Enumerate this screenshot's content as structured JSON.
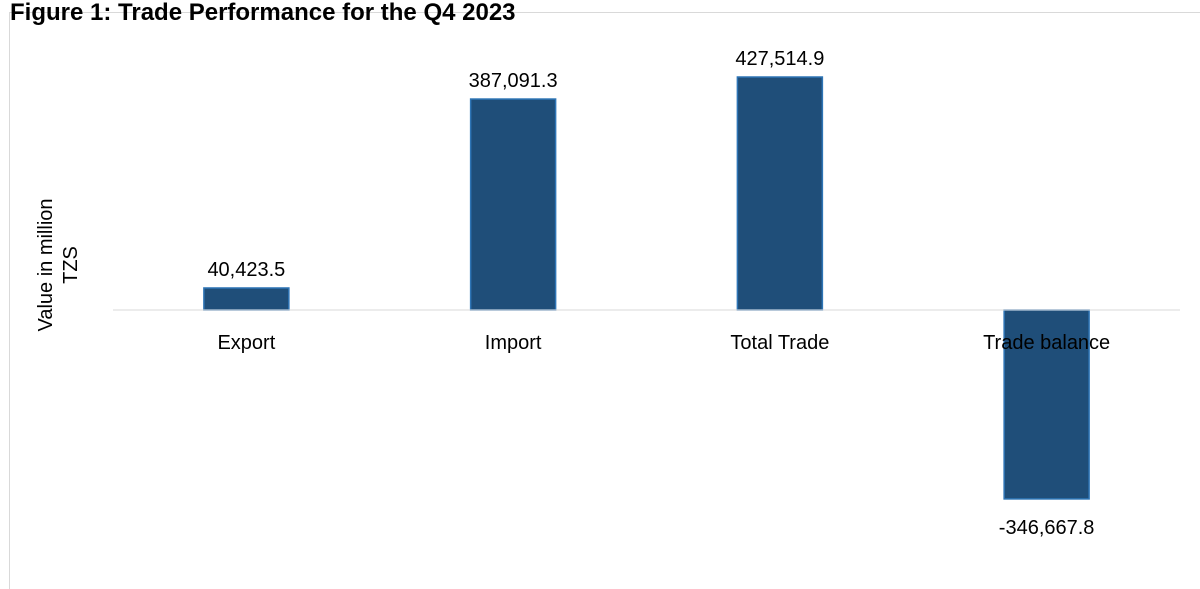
{
  "chart_data": {
    "type": "bar",
    "title": "Figure 1: Trade Performance for the Q4 2023",
    "ylabel": "Value in million TZS",
    "ylabel_lines": [
      "Value in million",
      "TZS"
    ],
    "xlabel": "",
    "categories": [
      "Export",
      "Import",
      "Total Trade",
      "Trade balance"
    ],
    "values": [
      40423.5,
      387091.3,
      427514.9,
      -346667.8
    ],
    "data_labels": [
      "40,423.5",
      "387,091.3",
      "427,514.9",
      "-346,667.8"
    ],
    "ylim": [
      -400000,
      500000
    ],
    "grid": false,
    "legend": "none",
    "bar_color": "#1f4e79",
    "bar_edge_color": "#2e75b6"
  }
}
